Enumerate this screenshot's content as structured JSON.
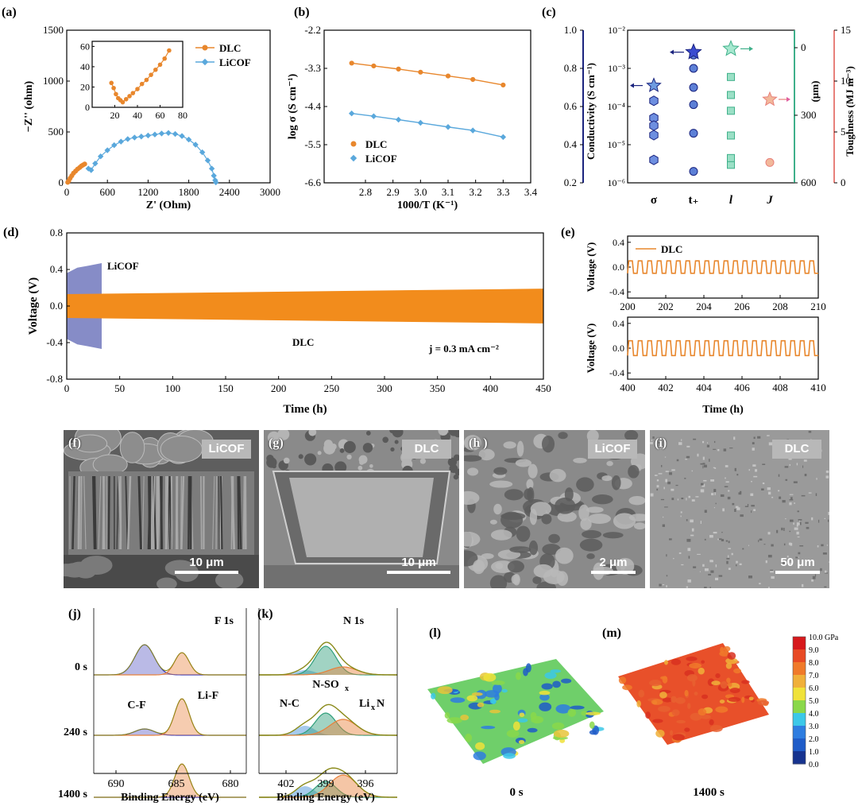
{
  "panel_letters": {
    "a": "(a)",
    "b": "(b)",
    "c": "(c)",
    "d": "(d)",
    "e": "(e)",
    "f": "(f)",
    "g": "(g)",
    "h": "(h )",
    "i": "(i)",
    "j": "(j)",
    "k": "(k)",
    "l": "(l)",
    "m": "(m)"
  },
  "colors": {
    "dlc": "#e8872d",
    "licof": "#5aa8dc",
    "licof_fill": "#7f86c4",
    "navy": "#1a237e",
    "teal": "#3fb08a",
    "salmon": "#e8807a",
    "blue_fill": "#5c7fd6",
    "xps_blue": "#3a3ab8",
    "xps_orange": "#e8803a",
    "xps_green": "#2e9e7a",
    "olive": "#8a8a1a"
  },
  "chart_data": [
    {
      "id": "a",
      "type": "scatter",
      "xlabel": "Z' (Ohm)",
      "ylabel": "−Z'' (ohm)",
      "xlim": [
        0,
        3000
      ],
      "ylim": [
        0,
        1500
      ],
      "xticks": [
        0,
        600,
        1200,
        1800,
        2400,
        3000
      ],
      "yticks": [
        0,
        500,
        1000,
        1500
      ],
      "legend": {
        "position": "top-right"
      },
      "series": [
        {
          "name": "DLC",
          "color": "#e8872d",
          "x": [
            15,
            30,
            50,
            75,
            100,
            130,
            160,
            190,
            215,
            240,
            265
          ],
          "y": [
            5,
            20,
            45,
            70,
            95,
            115,
            135,
            150,
            165,
            175,
            185
          ]
        },
        {
          "name": "LiCOF",
          "color": "#5aa8dc",
          "x": [
            320,
            360,
            420,
            500,
            600,
            700,
            800,
            900,
            1000,
            1100,
            1200,
            1300,
            1400,
            1500,
            1600,
            1700,
            1800,
            1900,
            2000,
            2080,
            2140,
            2170,
            2190,
            2200
          ],
          "y": [
            140,
            125,
            190,
            260,
            320,
            370,
            405,
            430,
            445,
            455,
            465,
            475,
            485,
            490,
            480,
            460,
            425,
            375,
            300,
            220,
            140,
            70,
            25,
            5
          ]
        }
      ],
      "inset": {
        "xlim": [
          0,
          80
        ],
        "ylim": [
          0,
          65
        ],
        "xticks": [
          20,
          40,
          60,
          80
        ],
        "yticks": [
          0,
          20,
          40,
          60
        ],
        "x": [
          17,
          19,
          21,
          23,
          25,
          27,
          30,
          33,
          36,
          40,
          44,
          48,
          52,
          56,
          60,
          64,
          68
        ],
        "y": [
          24,
          19,
          13,
          9,
          7,
          5,
          8,
          11,
          14,
          18,
          23,
          27,
          32,
          37,
          42,
          48,
          56
        ]
      }
    },
    {
      "id": "b",
      "type": "scatter",
      "xlabel": "1000/T (K⁻¹)",
      "ylabel": "log σ (S cm⁻¹)",
      "xlim": [
        2.65,
        3.4
      ],
      "ylim": [
        -6.6,
        -2.2
      ],
      "xticks": [
        2.8,
        2.9,
        3.0,
        3.1,
        3.2,
        3.3,
        3.4
      ],
      "yticks": [
        -2.2,
        -3.3,
        -4.4,
        -5.5,
        -6.6
      ],
      "legend": {
        "position": "bottom-left"
      },
      "series": [
        {
          "name": "DLC",
          "color": "#e8872d",
          "x": [
            2.75,
            2.83,
            2.92,
            3.0,
            3.1,
            3.19,
            3.3
          ],
          "y": [
            -3.15,
            -3.23,
            -3.32,
            -3.41,
            -3.52,
            -3.62,
            -3.78
          ]
        },
        {
          "name": "LiCOF",
          "color": "#5aa8dc",
          "x": [
            2.75,
            2.83,
            2.92,
            3.0,
            3.1,
            3.19,
            3.3
          ],
          "y": [
            -4.6,
            -4.68,
            -4.78,
            -4.87,
            -4.99,
            -5.09,
            -5.28
          ]
        }
      ]
    },
    {
      "id": "c",
      "type": "scatter",
      "ylabels": [
        "Conductivity (S cm⁻¹)",
        "(μm)",
        "Toughness (MJ m⁻³)"
      ],
      "categories": [
        "σ",
        "t₊",
        "l",
        "J"
      ],
      "axes": {
        "left_outer": {
          "ticks": [
            "0.2",
            "0.4",
            "0.6",
            "0.8",
            "1.0"
          ],
          "range": [
            0.2,
            1.0
          ],
          "color": "#1a237e"
        },
        "left_inner": {
          "ticks": [
            "10⁻⁶",
            "10⁻⁵",
            "10⁻⁴",
            "10⁻³",
            "10⁻²"
          ],
          "log_range": [
            -6,
            -2
          ],
          "color": "#000000"
        },
        "right_inner": {
          "ticks": [
            "0",
            "300",
            "600"
          ],
          "range": [
            0,
            600
          ],
          "color": "#3fb08a"
        },
        "right_outer": {
          "ticks": [
            "0",
            "5",
            "10",
            "15"
          ],
          "range": [
            0,
            15
          ],
          "color": "#e8807a"
        }
      },
      "sigma_log": [
        -3.85,
        -4.3,
        -4.5,
        -4.75,
        -5.4
      ],
      "sigma_star_log": -3.45,
      "tplus": [
        0.87,
        0.8,
        0.7,
        0.61,
        0.46,
        0.26
      ],
      "tplus_star": 0.885,
      "l_um": [
        520,
        490,
        390,
        280,
        210,
        130
      ],
      "l_star_um": 5,
      "J_MJ": [
        2.0
      ],
      "J_star_MJ": 8.2
    },
    {
      "id": "d",
      "type": "line",
      "xlabel": "Time (h)",
      "ylabel": "Voltage (V)",
      "xlim": [
        0,
        450
      ],
      "ylim": [
        -0.8,
        0.8
      ],
      "xticks": [
        0,
        50,
        100,
        150,
        200,
        250,
        300,
        350,
        400,
        450
      ],
      "yticks": [
        "-0.8",
        "-0.4",
        "0.0",
        "0.4",
        "0.8"
      ],
      "annotation": "j = 0.3 mA cm⁻²",
      "series": [
        {
          "name": "LiCOF",
          "color": "#7f86c4",
          "x_range": [
            0,
            33
          ],
          "v_band": [
            [
              0,
              -0.36,
              0.36
            ],
            [
              10,
              -0.42,
              0.42
            ],
            [
              20,
              -0.44,
              0.44
            ],
            [
              33,
              -0.47,
              0.47
            ]
          ]
        },
        {
          "name": "DLC",
          "color": "#f28c1c",
          "x_range": [
            0,
            450
          ],
          "v_band": [
            [
              0,
              -0.13,
              0.13
            ],
            [
              450,
              -0.19,
              0.19
            ]
          ]
        }
      ]
    },
    {
      "id": "e",
      "type": "line",
      "xlabel": "Time (h)",
      "ylabel": "Voltage (V)",
      "legend": [
        "DLC"
      ],
      "subplots": [
        {
          "xlim": [
            200,
            210
          ],
          "xticks": [
            200,
            202,
            204,
            206,
            208,
            210
          ],
          "ylim": [
            -0.5,
            0.5
          ],
          "yticks": [
            "-0.4",
            "0.0",
            "0.4"
          ],
          "amplitude": 0.1,
          "cycles": 20
        },
        {
          "xlim": [
            400,
            410
          ],
          "xticks": [
            400,
            402,
            404,
            406,
            408,
            410
          ],
          "ylim": [
            -0.5,
            0.5
          ],
          "yticks": [
            "-0.4",
            "0.0",
            "0.4"
          ],
          "amplitude": 0.12,
          "cycles": 20
        }
      ]
    },
    {
      "id": "j",
      "type": "area",
      "xlabel": "Binding Energy (eV)",
      "xlim": [
        688,
        679
      ],
      "xticks": [
        690,
        685,
        680
      ],
      "labels": {
        "rows": [
          "0 s",
          "240 s",
          "1400 s"
        ],
        "title": "F 1s",
        "cf": "C-F",
        "lif": "Li-F"
      }
    },
    {
      "id": "k",
      "type": "area",
      "xlabel": "Binding Energy (eV)",
      "xticks": [
        402,
        399,
        396
      ],
      "labels": {
        "title": "N 1s",
        "nso": "N-SO",
        "nso_sub": "x",
        "nc": "N-C",
        "lin": "Li",
        "lin_sub": "x",
        "lin_tail": "N"
      }
    },
    {
      "id": "lm",
      "type": "heatmap",
      "colorbar": {
        "ticks": [
          "10.0 GPa",
          "9.0",
          "8.0",
          "7.0",
          "6.0",
          "5.0",
          "4.0",
          "3.0",
          "2.0",
          "1.0",
          "0.0"
        ]
      },
      "captions": [
        "0 s",
        "1400 s"
      ]
    }
  ],
  "sem": [
    {
      "letter": "(f)",
      "tag": "LiCOF",
      "scale": "10 μm"
    },
    {
      "letter": "(g)",
      "tag": "DLC",
      "scale": "10 μm"
    },
    {
      "letter": "(h )",
      "tag": "LiCOF",
      "scale": "2 μm"
    },
    {
      "letter": "(i)",
      "tag": "DLC",
      "scale": "50 μm"
    }
  ],
  "labels_d": {
    "licof": "LiCOF",
    "dlc": "DLC"
  }
}
